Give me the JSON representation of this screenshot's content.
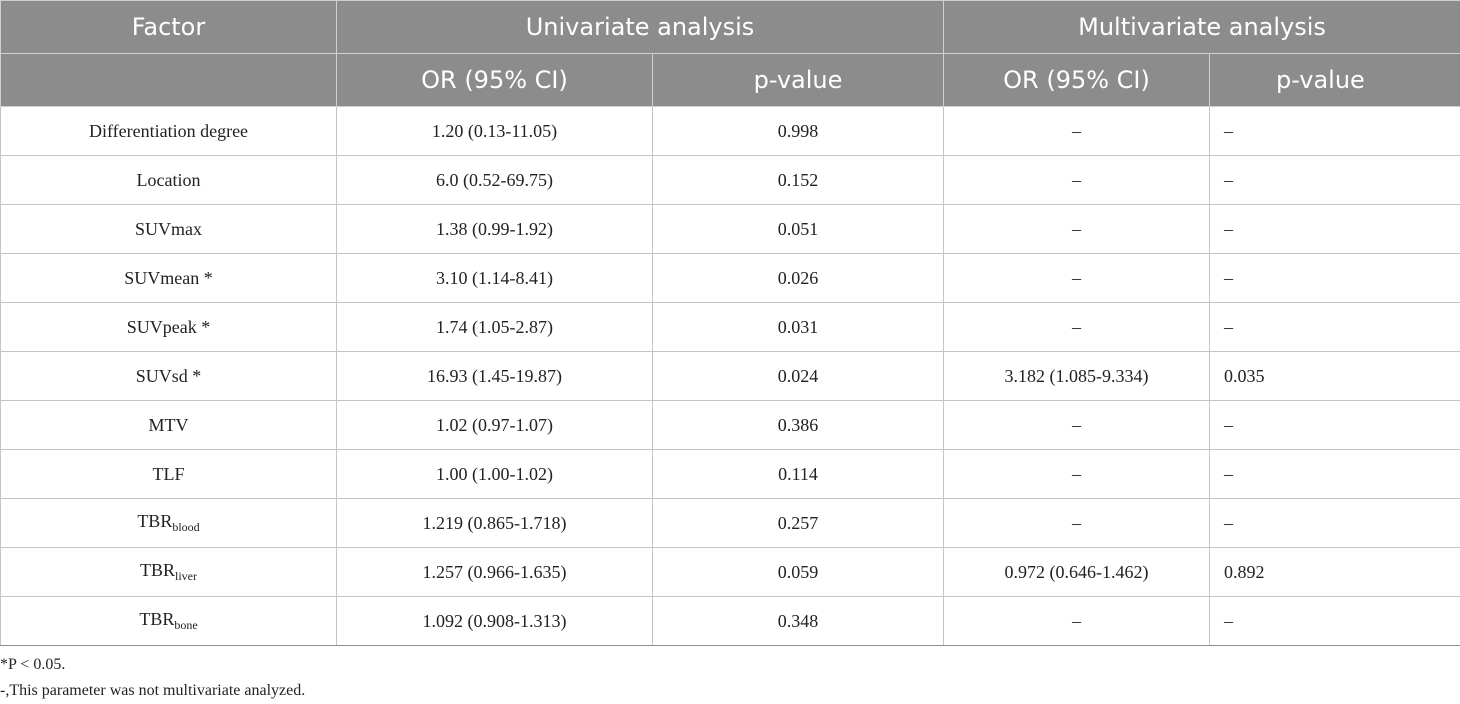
{
  "table": {
    "header1": [
      "Factor",
      "Univariate analysis",
      "Multivariate analysis"
    ],
    "header2": [
      "",
      "OR (95% CI)",
      "p-value",
      "OR (95% CI)",
      "p-value"
    ],
    "rows": [
      {
        "factor": "Differentiation degree",
        "sub": "",
        "uni_or": "1.20 (0.13-11.05)",
        "uni_p": "0.998",
        "multi_or": "–",
        "multi_p": "–"
      },
      {
        "factor": "Location",
        "sub": "",
        "uni_or": "6.0 (0.52-69.75)",
        "uni_p": "0.152",
        "multi_or": "–",
        "multi_p": "–"
      },
      {
        "factor": "SUVmax",
        "sub": "",
        "uni_or": "1.38 (0.99-1.92)",
        "uni_p": "0.051",
        "multi_or": "–",
        "multi_p": "–"
      },
      {
        "factor": "SUVmean *",
        "sub": "",
        "uni_or": "3.10 (1.14-8.41)",
        "uni_p": "0.026",
        "multi_or": "–",
        "multi_p": "–"
      },
      {
        "factor": "SUVpeak *",
        "sub": "",
        "uni_or": "1.74 (1.05-2.87)",
        "uni_p": "0.031",
        "multi_or": "–",
        "multi_p": "–"
      },
      {
        "factor": "SUVsd *",
        "sub": "",
        "uni_or": "16.93 (1.45-19.87)",
        "uni_p": "0.024",
        "multi_or": "3.182 (1.085-9.334)",
        "multi_p": "0.035"
      },
      {
        "factor": "MTV",
        "sub": "",
        "uni_or": "1.02 (0.97-1.07)",
        "uni_p": "0.386",
        "multi_or": "–",
        "multi_p": "–"
      },
      {
        "factor": "TLF",
        "sub": "",
        "uni_or": "1.00 (1.00-1.02)",
        "uni_p": "0.114",
        "multi_or": "–",
        "multi_p": "–"
      },
      {
        "factor": "TBR",
        "sub": "blood",
        "uni_or": "1.219 (0.865-1.718)",
        "uni_p": "0.257",
        "multi_or": "–",
        "multi_p": "–"
      },
      {
        "factor": "TBR",
        "sub": "liver",
        "uni_or": "1.257 (0.966-1.635)",
        "uni_p": "0.059",
        "multi_or": "0.972 (0.646-1.462)",
        "multi_p": "0.892"
      },
      {
        "factor": "TBR",
        "sub": "bone",
        "uni_or": "1.092 (0.908-1.313)",
        "uni_p": "0.348",
        "multi_or": "–",
        "multi_p": "–"
      }
    ]
  },
  "footnotes": [
    "*P < 0.05.",
    "-,This parameter was not multivariate analyzed."
  ],
  "colors": {
    "header_bg": "#8c8c8c",
    "header_text": "#ffffff",
    "grid": "#c4c4c4"
  }
}
